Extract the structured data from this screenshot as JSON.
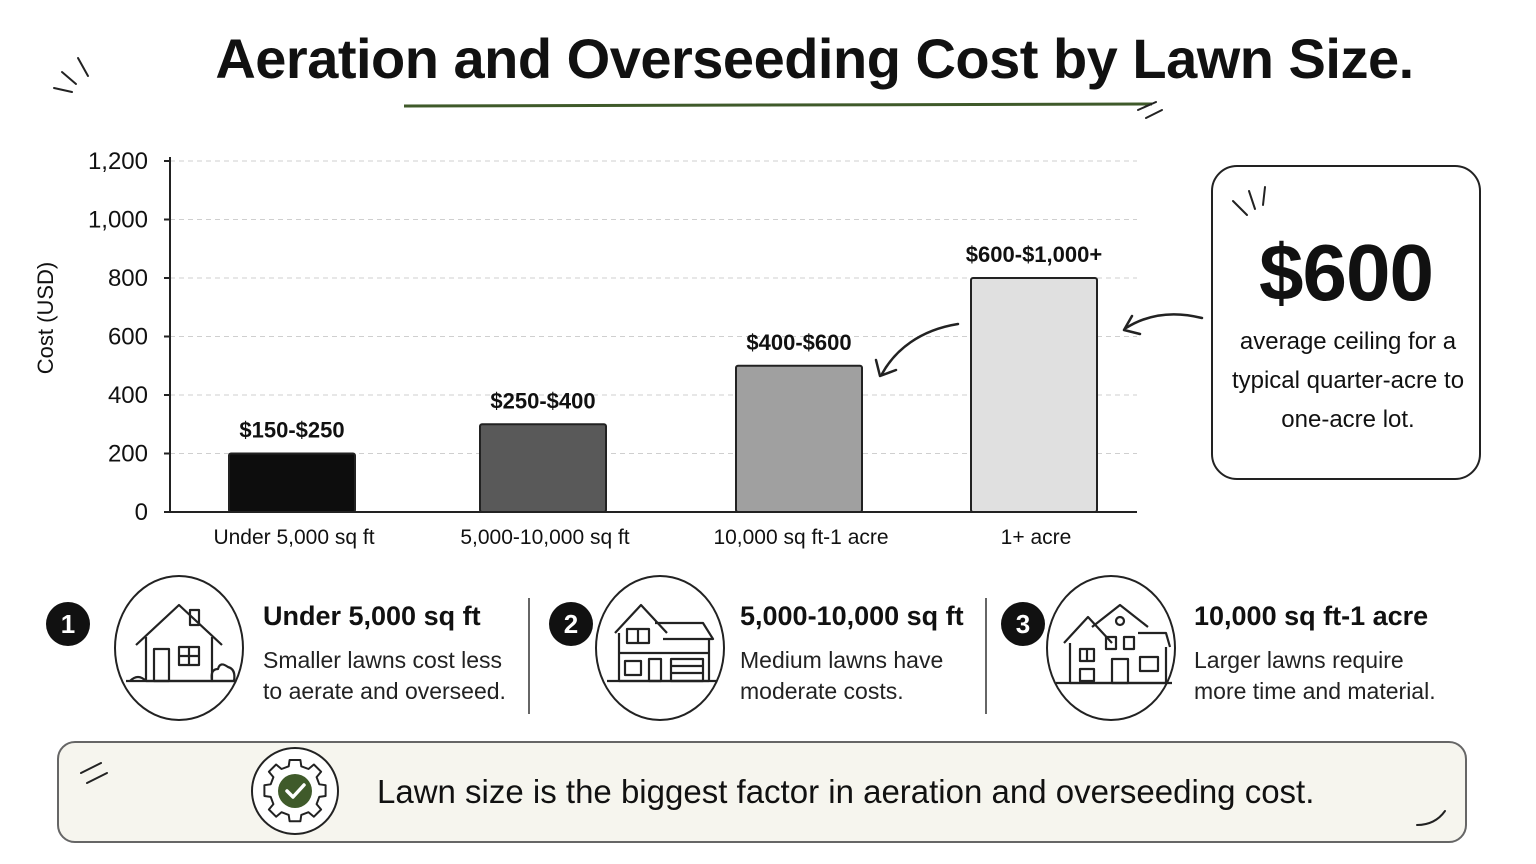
{
  "title": "Aeration and Overseeding Cost by Lawn Size.",
  "colors": {
    "accent_green": "#3f5a2a",
    "bar_colors": [
      "#0d0d0d",
      "#595959",
      "#a0a0a0",
      "#e0e0e0"
    ]
  },
  "chart_data": {
    "type": "bar",
    "ylabel": "Cost (USD)",
    "xlabel": "",
    "ylim": [
      0,
      1200
    ],
    "yticks": [
      0,
      200,
      400,
      600,
      800,
      1000,
      1200
    ],
    "ytick_labels": [
      "0",
      "200",
      "400",
      "600",
      "800",
      "1,000",
      "1,200"
    ],
    "grid": "horizontal dashed",
    "categories": [
      "Under 5,000 sq ft",
      "5,000-10,000 sq ft",
      "10,000 sq ft-1 acre",
      "1+ acre"
    ],
    "values": [
      200,
      300,
      500,
      800
    ],
    "data_labels": [
      "$150-$250",
      "$250-$400",
      "$400-$600",
      "$600-$1,000+"
    ]
  },
  "callout": {
    "value": "$600",
    "text": "average ceiling for a typical quarter-acre to one-acre lot."
  },
  "steps": [
    {
      "number": "1",
      "title": "Under 5,000 sq ft",
      "line1": "Smaller lawns cost less",
      "line2": "to aerate and overseed.",
      "icon": "small-house-icon"
    },
    {
      "number": "2",
      "title": "5,000-10,000 sq ft",
      "line1": "Medium lawns have",
      "line2": "moderate costs.",
      "icon": "house-with-garage-icon"
    },
    {
      "number": "3",
      "title": "10,000 sq ft-1 acre",
      "line1": "Larger lawns require",
      "line2": "more time and material.",
      "icon": "large-house-icon"
    }
  ],
  "banner": {
    "text": "Lawn size is the biggest factor in aeration and overseeding cost.",
    "icon": "gear-check-icon"
  }
}
